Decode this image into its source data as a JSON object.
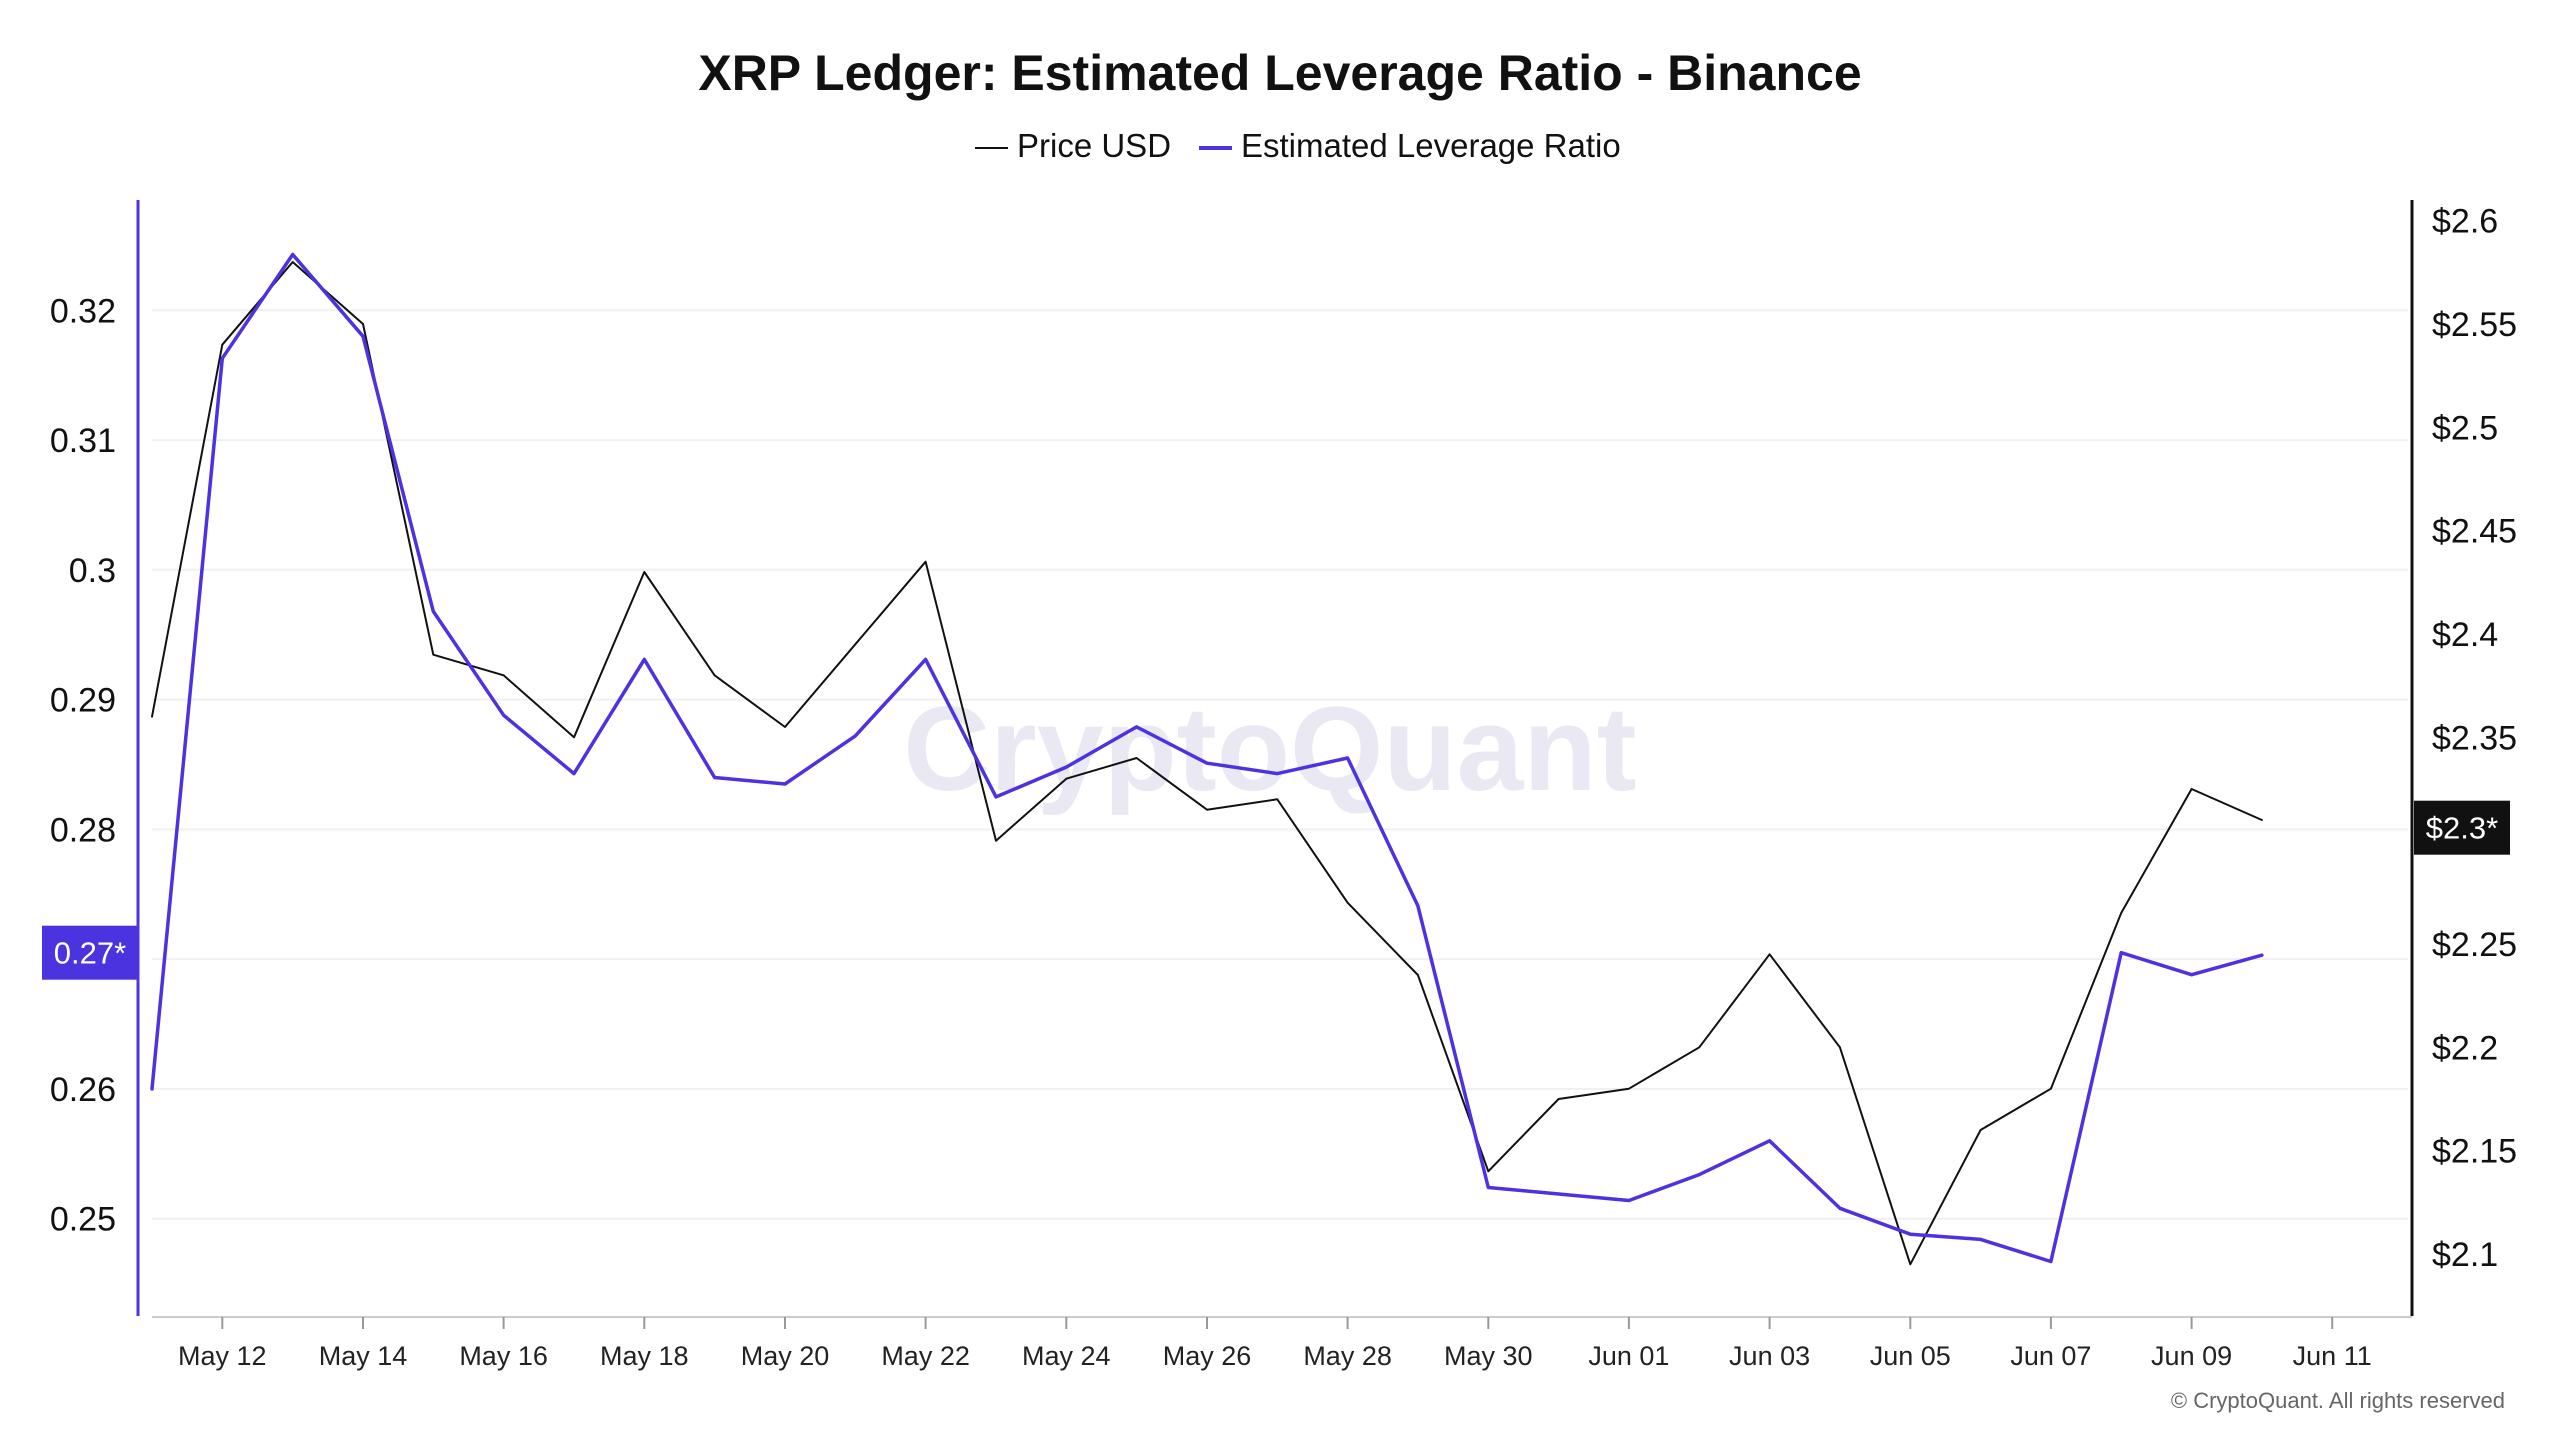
{
  "chart_data": {
    "type": "line",
    "title": "XRP Ledger: Estimated Leverage Ratio - Binance",
    "x": [
      "May 11",
      "May 12",
      "May 13",
      "May 14",
      "May 15",
      "May 16",
      "May 17",
      "May 18",
      "May 19",
      "May 20",
      "May 21",
      "May 22",
      "May 23",
      "May 24",
      "May 25",
      "May 26",
      "May 27",
      "May 28",
      "May 29",
      "May 30",
      "May 31",
      "Jun 01",
      "Jun 02",
      "Jun 03",
      "Jun 04",
      "Jun 05",
      "Jun 06",
      "Jun 07",
      "Jun 08",
      "Jun 09",
      "Jun 10"
    ],
    "x_ticks": [
      "May 12",
      "May 14",
      "May 16",
      "May 18",
      "May 20",
      "May 22",
      "May 24",
      "May 26",
      "May 28",
      "May 30",
      "Jun 01",
      "Jun 03",
      "Jun 05",
      "Jun 07",
      "Jun 09",
      "Jun 11"
    ],
    "series": [
      {
        "name": "Price USD",
        "axis": "right",
        "color": "#111111",
        "values": [
          2.36,
          2.54,
          2.58,
          2.55,
          2.39,
          2.38,
          2.35,
          2.43,
          2.38,
          2.355,
          2.395,
          2.435,
          2.3,
          2.33,
          2.34,
          2.315,
          2.32,
          2.27,
          2.235,
          2.14,
          2.175,
          2.18,
          2.2,
          2.245,
          2.2,
          2.095,
          2.16,
          2.18,
          2.265,
          2.325,
          2.31
        ]
      },
      {
        "name": "Estimated Leverage Ratio",
        "axis": "left",
        "color": "#4b33e0",
        "values": [
          0.26,
          0.3163,
          0.3243,
          0.318,
          0.2968,
          0.2888,
          0.2843,
          0.2931,
          0.284,
          0.2835,
          0.2872,
          0.2931,
          0.2825,
          0.2848,
          0.2879,
          0.2851,
          0.2843,
          0.2855,
          0.2741,
          0.2524,
          0.2519,
          0.2514,
          0.2534,
          0.256,
          0.2508,
          0.2488,
          0.2484,
          0.2467,
          0.2705,
          0.2688,
          0.2703
        ]
      }
    ],
    "left_axis": {
      "ylim": [
        0.2425,
        0.3285
      ],
      "ticks": [
        0.25,
        0.26,
        0.28,
        0.29,
        0.3,
        0.31,
        0.32
      ],
      "tick_labels": [
        "0.25",
        "0.26",
        "0.28",
        "0.29",
        "0.3",
        "0.31",
        "0.32"
      ],
      "current_badge": {
        "value": 0.2705,
        "label": "0.27*",
        "color": "#4b33e0"
      }
    },
    "right_axis": {
      "ylim": [
        2.07,
        2.61
      ],
      "ticks": [
        2.1,
        2.15,
        2.2,
        2.25,
        2.35,
        2.4,
        2.45,
        2.5,
        2.55,
        2.6
      ],
      "tick_labels": [
        "$2.1",
        "$2.15",
        "$2.2",
        "$2.25",
        "$2.35",
        "$2.4",
        "$2.45",
        "$2.5",
        "$2.55",
        "$2.6"
      ],
      "current_badge": {
        "value": 2.3,
        "label": "$2.3*",
        "color": "#111111"
      }
    },
    "grid": true,
    "legend": "top-center"
  },
  "watermark": "CryptoQuant",
  "copyright": "© CryptoQuant. All rights reserved"
}
